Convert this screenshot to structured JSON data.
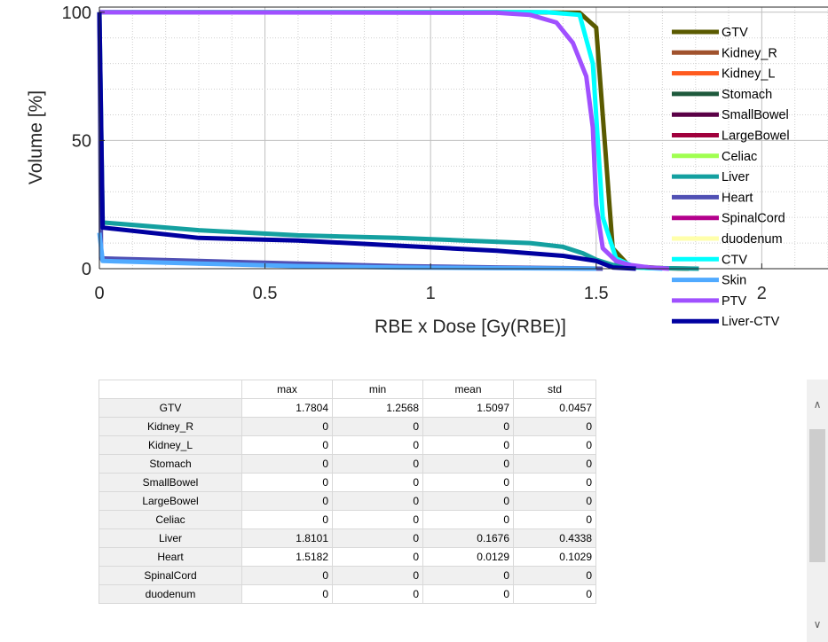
{
  "chart_data": {
    "type": "line",
    "xlabel": "RBE x Dose [Gy(RBE)]",
    "ylabel": "Volume [%]",
    "xlim": [
      0,
      2.2
    ],
    "ylim": [
      0,
      102
    ],
    "xticks": [
      "0",
      "0.5",
      "1",
      "1.5",
      "2"
    ],
    "yticks": [
      "0",
      "50",
      "100"
    ],
    "grid": "major and minor (dotted)",
    "legend_placement": "right, overlapping plot",
    "series": [
      {
        "name": "GTV",
        "color": "#5a5a00",
        "x": [
          0,
          1.3,
          1.45,
          1.5,
          1.55,
          1.6,
          1.7,
          1.78
        ],
        "y": [
          100,
          100,
          99.8,
          94,
          8,
          1,
          0.2,
          0
        ]
      },
      {
        "name": "Kidney_R",
        "color": "#a0522d",
        "x": [],
        "y": []
      },
      {
        "name": "Kidney_L",
        "color": "#ff5a1e",
        "x": [],
        "y": []
      },
      {
        "name": "Stomach",
        "color": "#1e5a3c",
        "x": [],
        "y": []
      },
      {
        "name": "SmallBowel",
        "color": "#5a0046",
        "x": [],
        "y": []
      },
      {
        "name": "LargeBowel",
        "color": "#a0003c",
        "x": [],
        "y": []
      },
      {
        "name": "Celiac",
        "color": "#a0ff50",
        "x": [],
        "y": []
      },
      {
        "name": "Liver",
        "color": "#14a0a0",
        "x": [
          0,
          0.01,
          0.3,
          0.6,
          0.9,
          1.1,
          1.3,
          1.4,
          1.46,
          1.5,
          1.55,
          1.65,
          1.81
        ],
        "y": [
          100,
          18,
          15,
          13,
          12,
          11,
          10,
          8.5,
          6,
          3.5,
          1.5,
          0.3,
          0
        ]
      },
      {
        "name": "Heart",
        "color": "#5050b4",
        "x": [
          0,
          0.005,
          0.3,
          0.6,
          0.9,
          1.2,
          1.4,
          1.52
        ],
        "y": [
          100,
          4,
          3,
          2,
          1,
          0.5,
          0.2,
          0
        ]
      },
      {
        "name": "SpinalCord",
        "color": "#b4008c",
        "x": [],
        "y": []
      },
      {
        "name": "duodenum",
        "color": "#ffffaa",
        "x": [],
        "y": []
      },
      {
        "name": "CTV",
        "color": "#00ffff",
        "x": [
          0,
          1.35,
          1.45,
          1.49,
          1.52,
          1.56,
          1.62,
          1.7
        ],
        "y": [
          100,
          100,
          99,
          80,
          20,
          4,
          0.5,
          0
        ]
      },
      {
        "name": "Skin",
        "color": "#50aaff",
        "x": [
          0,
          0.01,
          0.3,
          0.6,
          0.9,
          1.2,
          1.4,
          1.5
        ],
        "y": [
          14,
          3,
          2,
          1,
          0.5,
          0.2,
          0.1,
          0
        ]
      },
      {
        "name": "PTV",
        "color": "#a050ff",
        "x": [
          0,
          1.2,
          1.3,
          1.38,
          1.43,
          1.47,
          1.49,
          1.5,
          1.52,
          1.56,
          1.6,
          1.66,
          1.72
        ],
        "y": [
          100,
          99.8,
          99,
          96,
          88,
          75,
          55,
          25,
          8,
          3,
          1.5,
          0.5,
          0
        ]
      },
      {
        "name": "Liver-CTV",
        "color": "#0000a0",
        "x": [
          0,
          0.01,
          0.3,
          0.6,
          0.9,
          1.2,
          1.4,
          1.5,
          1.55,
          1.62
        ],
        "y": [
          100,
          16,
          12,
          11,
          9,
          7,
          5,
          3,
          0.5,
          0
        ]
      }
    ]
  },
  "table": {
    "columns": [
      "max",
      "min",
      "mean",
      "std"
    ],
    "rows": [
      {
        "name": "GTV",
        "values": [
          "1.7804",
          "1.2568",
          "1.5097",
          "0.0457"
        ]
      },
      {
        "name": "Kidney_R",
        "values": [
          "0",
          "0",
          "0",
          "0"
        ]
      },
      {
        "name": "Kidney_L",
        "values": [
          "0",
          "0",
          "0",
          "0"
        ]
      },
      {
        "name": "Stomach",
        "values": [
          "0",
          "0",
          "0",
          "0"
        ]
      },
      {
        "name": "SmallBowel",
        "values": [
          "0",
          "0",
          "0",
          "0"
        ]
      },
      {
        "name": "LargeBowel",
        "values": [
          "0",
          "0",
          "0",
          "0"
        ]
      },
      {
        "name": "Celiac",
        "values": [
          "0",
          "0",
          "0",
          "0"
        ]
      },
      {
        "name": "Liver",
        "values": [
          "1.8101",
          "0",
          "0.1676",
          "0.4338"
        ]
      },
      {
        "name": "Heart",
        "values": [
          "1.5182",
          "0",
          "0.0129",
          "0.1029"
        ]
      },
      {
        "name": "SpinalCord",
        "values": [
          "0",
          "0",
          "0",
          "0"
        ]
      },
      {
        "name": "duodenum",
        "values": [
          "0",
          "0",
          "0",
          "0"
        ]
      }
    ]
  },
  "scrollbar": {
    "up_icon": "chevron-up-icon",
    "down_icon": "chevron-down-icon"
  }
}
